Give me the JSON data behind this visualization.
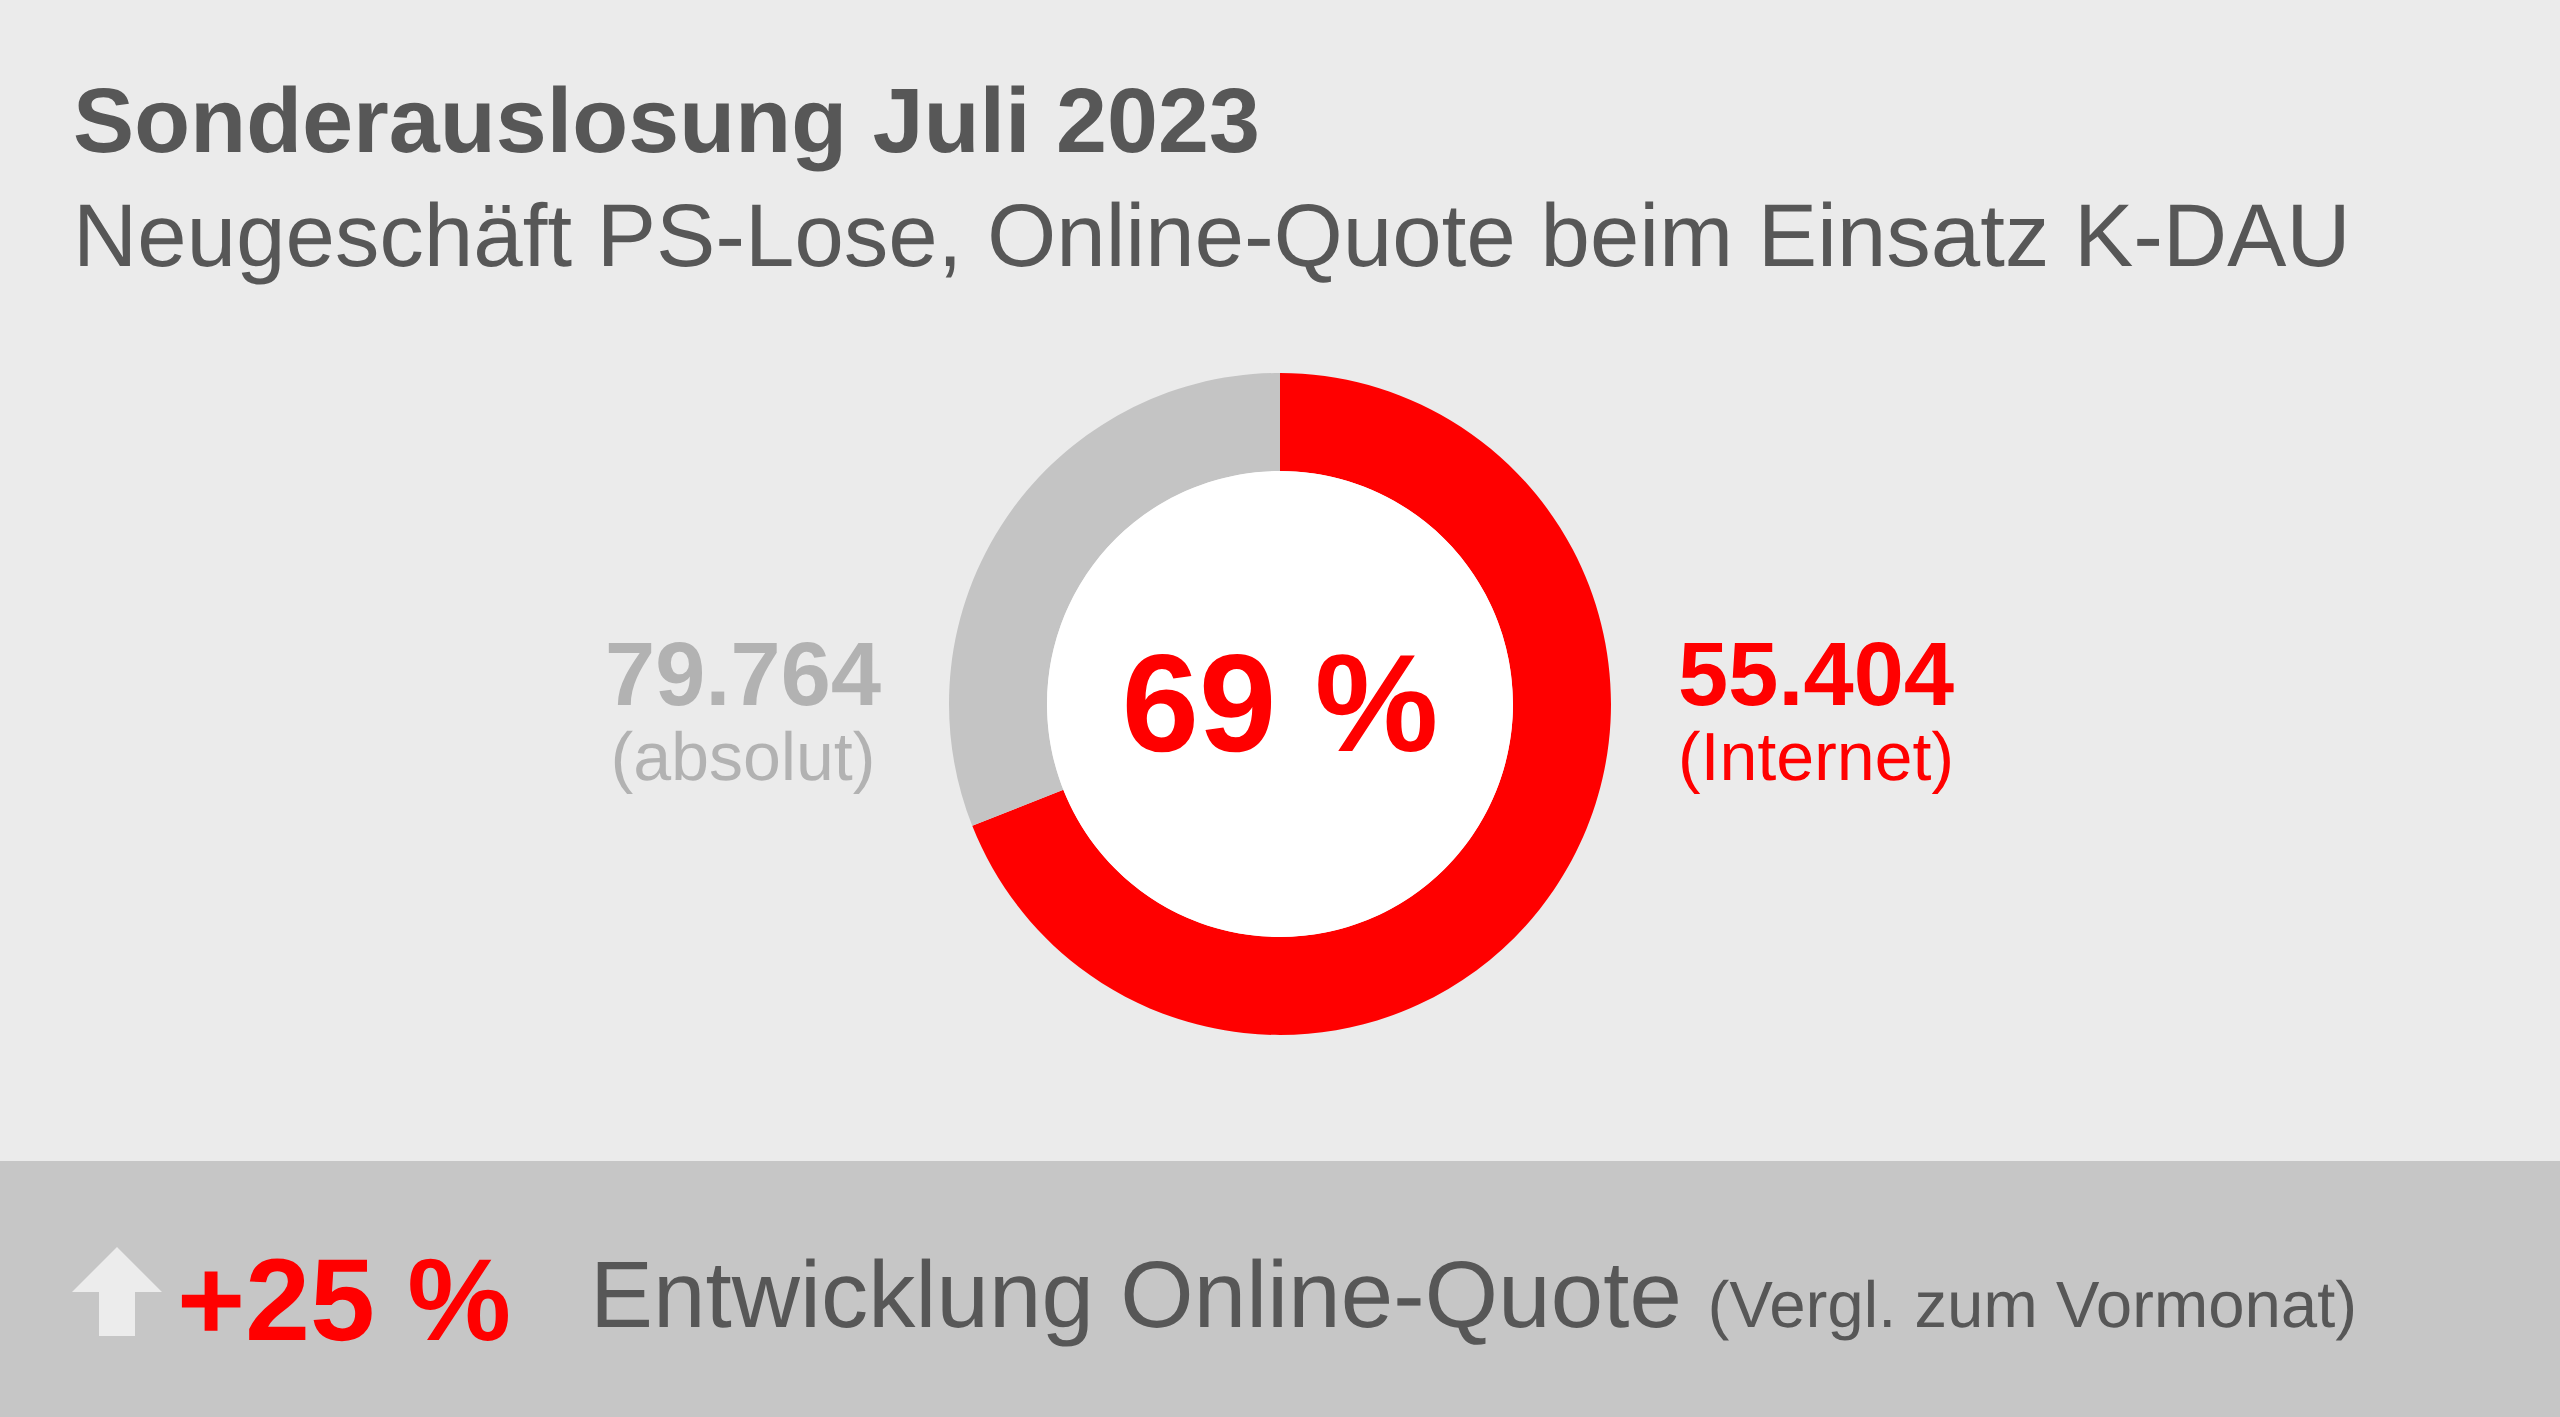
{
  "chart_data": {
    "type": "donut",
    "title": "Sonderauslosung Juli 2023",
    "subtitle": "Neugeschäft PS-Lose, Online-Quote beim Einsatz K-DAU",
    "categories": [
      "(Internet)",
      null
    ],
    "values": [
      69,
      31
    ],
    "colors": [
      "#ff0000",
      "#c4c4c4"
    ],
    "annotations": [
      "55.404",
      "79.764",
      "(absolut)",
      "69 %",
      "+25 %",
      "Entwicklung Online-Quote",
      "(Vergl. zum Vormonat)"
    ]
  }
}
